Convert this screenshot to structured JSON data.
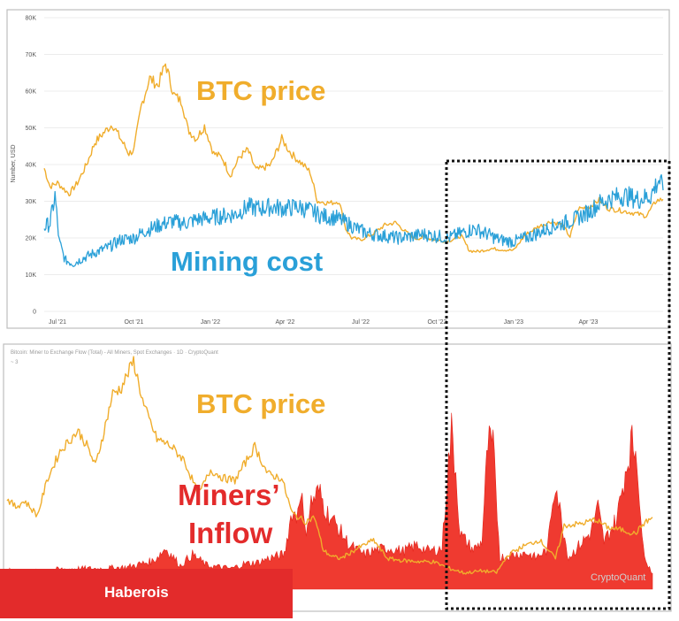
{
  "chart_data": [
    {
      "type": "line",
      "ylabel": "Number, USD",
      "y_ticks": [
        "0",
        "10K",
        "20K",
        "30K",
        "40K",
        "50K",
        "60K",
        "70K",
        "80K"
      ],
      "ylim": [
        0,
        80000
      ],
      "x_ticks": [
        "Jul '21",
        "Oct '21",
        "Jan '22",
        "Apr '22",
        "Jul '22",
        "Oct '22",
        "Jan '23",
        "Apr '23"
      ],
      "x_tick_dates": [
        "2021-07-01",
        "2021-10-01",
        "2022-01-01",
        "2022-04-01",
        "2022-07-01",
        "2022-10-01",
        "2023-01-01",
        "2023-04-01"
      ],
      "xlim": [
        "2021-06-15",
        "2023-06-30"
      ],
      "grid": true,
      "annotations": [
        "BTC price",
        "Mining cost"
      ],
      "series": [
        {
          "name": "BTC price",
          "color": "#f0ad2c",
          "points": [
            [
              "2021-06-15",
              39000
            ],
            [
              "2021-06-22",
              34000
            ],
            [
              "2021-07-01",
              35000
            ],
            [
              "2021-07-15",
              32000
            ],
            [
              "2021-07-25",
              35000
            ],
            [
              "2021-08-05",
              40000
            ],
            [
              "2021-08-15",
              46000
            ],
            [
              "2021-08-25",
              48500
            ],
            [
              "2021-09-05",
              51000
            ],
            [
              "2021-09-15",
              47000
            ],
            [
              "2021-09-25",
              43000
            ],
            [
              "2021-10-01",
              44000
            ],
            [
              "2021-10-10",
              56000
            ],
            [
              "2021-10-20",
              63500
            ],
            [
              "2021-10-30",
              61500
            ],
            [
              "2021-11-08",
              67500
            ],
            [
              "2021-11-18",
              59000
            ],
            [
              "2021-11-28",
              57000
            ],
            [
              "2021-12-05",
              49500
            ],
            [
              "2021-12-15",
              47000
            ],
            [
              "2021-12-25",
              50500
            ],
            [
              "2022-01-05",
              43000
            ],
            [
              "2022-01-15",
              42000
            ],
            [
              "2022-01-25",
              37000
            ],
            [
              "2022-02-05",
              42000
            ],
            [
              "2022-02-15",
              44000
            ],
            [
              "2022-02-25",
              38500
            ],
            [
              "2022-03-05",
              39000
            ],
            [
              "2022-03-15",
              40000
            ],
            [
              "2022-03-28",
              47000
            ],
            [
              "2022-04-08",
              43000
            ],
            [
              "2022-04-20",
              40500
            ],
            [
              "2022-05-01",
              38000
            ],
            [
              "2022-05-10",
              30000
            ],
            [
              "2022-05-25",
              29500
            ],
            [
              "2022-06-05",
              30000
            ],
            [
              "2022-06-13",
              22500
            ],
            [
              "2022-06-20",
              20000
            ],
            [
              "2022-07-01",
              19500
            ],
            [
              "2022-07-15",
              21000
            ],
            [
              "2022-07-30",
              23500
            ],
            [
              "2022-08-12",
              24200
            ],
            [
              "2022-08-25",
              21500
            ],
            [
              "2022-09-05",
              19800
            ],
            [
              "2022-09-15",
              20200
            ],
            [
              "2022-10-01",
              19300
            ],
            [
              "2022-10-15",
              19200
            ],
            [
              "2022-10-30",
              20600
            ],
            [
              "2022-11-09",
              16500
            ],
            [
              "2022-11-20",
              16300
            ],
            [
              "2022-12-05",
              17100
            ],
            [
              "2022-12-20",
              16800
            ],
            [
              "2023-01-01",
              16600
            ],
            [
              "2023-01-15",
              20800
            ],
            [
              "2023-01-30",
              23000
            ],
            [
              "2023-02-15",
              24500
            ],
            [
              "2023-03-01",
              23500
            ],
            [
              "2023-03-10",
              20300
            ],
            [
              "2023-03-20",
              28000
            ],
            [
              "2023-04-01",
              28400
            ],
            [
              "2023-04-14",
              30300
            ],
            [
              "2023-04-25",
              28000
            ],
            [
              "2023-05-10",
              27500
            ],
            [
              "2023-05-25",
              26800
            ],
            [
              "2023-06-10",
              26000
            ],
            [
              "2023-06-22",
              30200
            ],
            [
              "2023-06-30",
              30500
            ]
          ]
        },
        {
          "name": "Mining cost",
          "color": "#2aa0d8",
          "points": [
            [
              "2021-06-15",
              23000
            ],
            [
              "2021-06-22",
              24000
            ],
            [
              "2021-06-28",
              31500
            ],
            [
              "2021-07-03",
              19000
            ],
            [
              "2021-07-10",
              14000
            ],
            [
              "2021-07-20",
              13000
            ],
            [
              "2021-08-01",
              14500
            ],
            [
              "2021-08-15",
              16000
            ],
            [
              "2021-09-01",
              17500
            ],
            [
              "2021-09-15",
              19500
            ],
            [
              "2021-10-01",
              20000
            ],
            [
              "2021-10-15",
              22000
            ],
            [
              "2021-11-01",
              23500
            ],
            [
              "2021-11-15",
              24500
            ],
            [
              "2021-12-01",
              24000
            ],
            [
              "2021-12-15",
              25000
            ],
            [
              "2022-01-01",
              25500
            ],
            [
              "2022-01-15",
              26000
            ],
            [
              "2022-02-01",
              26500
            ],
            [
              "2022-02-15",
              28500
            ],
            [
              "2022-03-01",
              28000
            ],
            [
              "2022-03-15",
              28500
            ],
            [
              "2022-04-01",
              28000
            ],
            [
              "2022-04-15",
              28500
            ],
            [
              "2022-05-01",
              27500
            ],
            [
              "2022-05-15",
              26000
            ],
            [
              "2022-06-01",
              25500
            ],
            [
              "2022-06-15",
              24000
            ],
            [
              "2022-07-01",
              22000
            ],
            [
              "2022-07-15",
              21000
            ],
            [
              "2022-08-01",
              20500
            ],
            [
              "2022-08-15",
              20000
            ],
            [
              "2022-09-01",
              20500
            ],
            [
              "2022-09-15",
              21000
            ],
            [
              "2022-10-01",
              20500
            ],
            [
              "2022-10-15",
              20000
            ],
            [
              "2022-11-01",
              21500
            ],
            [
              "2022-11-15",
              22500
            ],
            [
              "2022-12-01",
              21000
            ],
            [
              "2022-12-15",
              19500
            ],
            [
              "2023-01-01",
              19000
            ],
            [
              "2023-01-15",
              20000
            ],
            [
              "2023-02-01",
              21500
            ],
            [
              "2023-02-15",
              23000
            ],
            [
              "2023-03-01",
              24000
            ],
            [
              "2023-03-15",
              25000
            ],
            [
              "2023-04-01",
              27000
            ],
            [
              "2023-04-15",
              29500
            ],
            [
              "2023-05-01",
              31000
            ],
            [
              "2023-05-15",
              31500
            ],
            [
              "2023-06-01",
              30500
            ],
            [
              "2023-06-15",
              31500
            ],
            [
              "2023-06-25",
              36000
            ],
            [
              "2023-06-30",
              33000
            ]
          ]
        }
      ]
    },
    {
      "type": "area",
      "title": "Bitcoin: Miner to Exchange Flow (Total) - All Miners, Spot Exchanges · 1D · CryptoQuant",
      "dropdown": "~ 3",
      "annotations": [
        "BTC price",
        "Miners’",
        "Inflow"
      ],
      "watermark": "CryptoQuant",
      "xlim": [
        "2021-06-15",
        "2023-06-30"
      ],
      "series": [
        {
          "name": "BTC price",
          "color": "#f0ad2c",
          "points": [
            [
              "2021-06-15",
              34500
            ],
            [
              "2021-06-25",
              32500
            ],
            [
              "2021-07-05",
              34000
            ],
            [
              "2021-07-20",
              30500
            ],
            [
              "2021-08-01",
              39500
            ],
            [
              "2021-08-15",
              46000
            ],
            [
              "2021-08-25",
              48500
            ],
            [
              "2021-09-05",
              51000
            ],
            [
              "2021-09-15",
              47500
            ],
            [
              "2021-09-25",
              42500
            ],
            [
              "2021-10-05",
              51000
            ],
            [
              "2021-10-15",
              60000
            ],
            [
              "2021-10-25",
              61500
            ],
            [
              "2021-11-08",
              68000
            ],
            [
              "2021-11-20",
              57000
            ],
            [
              "2021-12-05",
              49000
            ],
            [
              "2021-12-20",
              47500
            ],
            [
              "2022-01-05",
              44000
            ],
            [
              "2022-01-22",
              35500
            ],
            [
              "2022-02-05",
              41500
            ],
            [
              "2022-02-20",
              39500
            ],
            [
              "2022-03-05",
              39000
            ],
            [
              "2022-03-28",
              47200
            ],
            [
              "2022-04-12",
              40500
            ],
            [
              "2022-04-28",
              39500
            ],
            [
              "2022-05-10",
              31000
            ],
            [
              "2022-05-25",
              29000
            ],
            [
              "2022-06-05",
              30000
            ],
            [
              "2022-06-15",
              22000
            ],
            [
              "2022-06-25",
              20500
            ],
            [
              "2022-07-05",
              20000
            ],
            [
              "2022-07-25",
              22500
            ],
            [
              "2022-08-12",
              24500
            ],
            [
              "2022-08-28",
              20000
            ],
            [
              "2022-09-15",
              19500
            ],
            [
              "2022-10-01",
              19300
            ],
            [
              "2022-10-20",
              19200
            ],
            [
              "2022-11-09",
              17500
            ],
            [
              "2022-11-25",
              16500
            ],
            [
              "2022-12-15",
              17000
            ],
            [
              "2023-01-01",
              16600
            ],
            [
              "2023-01-15",
              21000
            ],
            [
              "2023-02-01",
              23000
            ],
            [
              "2023-02-20",
              24500
            ],
            [
              "2023-03-10",
              20000
            ],
            [
              "2023-03-20",
              28000
            ],
            [
              "2023-04-10",
              28500
            ],
            [
              "2023-04-25",
              29500
            ],
            [
              "2023-05-10",
              27500
            ],
            [
              "2023-05-25",
              27000
            ],
            [
              "2023-06-10",
              26000
            ],
            [
              "2023-06-20",
              28500
            ],
            [
              "2023-06-30",
              30000
            ]
          ]
        },
        {
          "name": "Miners’ Inflow",
          "color": "#ef3a30",
          "points": [
            [
              "2021-06-15",
              0.12
            ],
            [
              "2021-07-01",
              0.1
            ],
            [
              "2021-08-01",
              0.12
            ],
            [
              "2021-09-01",
              0.13
            ],
            [
              "2021-10-01",
              0.13
            ],
            [
              "2021-11-01",
              0.14
            ],
            [
              "2021-12-01",
              0.18
            ],
            [
              "2021-12-15",
              0.26
            ],
            [
              "2022-01-01",
              0.15
            ],
            [
              "2022-01-15",
              0.22
            ],
            [
              "2022-02-01",
              0.15
            ],
            [
              "2022-02-15",
              0.14
            ],
            [
              "2022-03-01",
              0.13
            ],
            [
              "2022-03-15",
              0.16
            ],
            [
              "2022-04-01",
              0.17
            ],
            [
              "2022-04-15",
              0.2
            ],
            [
              "2022-05-01",
              0.22
            ],
            [
              "2022-05-10",
              0.5
            ],
            [
              "2022-05-15",
              0.45
            ],
            [
              "2022-05-20",
              0.66
            ],
            [
              "2022-05-25",
              0.35
            ],
            [
              "2022-06-01",
              0.55
            ],
            [
              "2022-06-10",
              0.62
            ],
            [
              "2022-06-20",
              0.48
            ],
            [
              "2022-07-01",
              0.4
            ],
            [
              "2022-07-15",
              0.28
            ],
            [
              "2022-08-01",
              0.22
            ],
            [
              "2022-08-15",
              0.25
            ],
            [
              "2022-09-01",
              0.26
            ],
            [
              "2022-09-15",
              0.24
            ],
            [
              "2022-10-01",
              0.28
            ],
            [
              "2022-10-15",
              0.24
            ],
            [
              "2022-10-30",
              0.26
            ],
            [
              "2022-11-05",
              0.7
            ],
            [
              "2022-11-10",
              1.0
            ],
            [
              "2022-11-15",
              0.75
            ],
            [
              "2022-11-20",
              0.35
            ],
            [
              "2022-12-05",
              0.25
            ],
            [
              "2022-12-15",
              0.3
            ],
            [
              "2022-12-22",
              0.92
            ],
            [
              "2022-12-28",
              0.9
            ],
            [
              "2023-01-05",
              0.2
            ],
            [
              "2023-01-20",
              0.22
            ],
            [
              "2023-02-05",
              0.23
            ],
            [
              "2023-02-15",
              0.2
            ],
            [
              "2023-03-01",
              0.25
            ],
            [
              "2023-03-05",
              0.5
            ],
            [
              "2023-03-10",
              0.7
            ],
            [
              "2023-03-15",
              0.5
            ],
            [
              "2023-03-25",
              0.2
            ],
            [
              "2023-04-10",
              0.3
            ],
            [
              "2023-04-20",
              0.36
            ],
            [
              "2023-04-28",
              0.52
            ],
            [
              "2023-05-05",
              0.3
            ],
            [
              "2023-05-20",
              0.45
            ],
            [
              "2023-05-28",
              0.7
            ],
            [
              "2023-06-05",
              0.93
            ],
            [
              "2023-06-12",
              0.88
            ],
            [
              "2023-06-18",
              0.3
            ],
            [
              "2023-06-25",
              0.15
            ],
            [
              "2023-06-30",
              0.1
            ]
          ]
        }
      ]
    }
  ],
  "brand": {
    "name": "Haberois",
    "color": "#e32b2b"
  }
}
